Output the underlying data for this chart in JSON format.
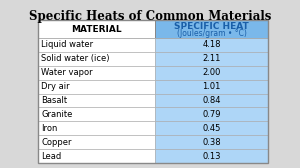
{
  "title": "Specific Heats of Common Materials",
  "col1_header": "MATERIAL",
  "col2_header": "SPECIFIC HEAT",
  "col2_subheader": "(Joules/gram • °C)",
  "materials": [
    "Liquid water",
    "Solid water (ice)",
    "Water vapor",
    "Dry air",
    "Basalt",
    "Granite",
    "Iron",
    "Copper",
    "Lead"
  ],
  "values": [
    "4.18",
    "2.11",
    "2.00",
    "1.01",
    "0.84",
    "0.79",
    "0.45",
    "0.38",
    "0.13"
  ],
  "header_bg_color": "#7ab8ea",
  "header_text_color": "#1a5fa8",
  "value_bg_color": "#aed6f7",
  "row_border_color": "#aaaaaa",
  "table_border_color": "#888888",
  "title_fontsize": 8.5,
  "header_fontsize": 6.5,
  "subheader_fontsize": 5.5,
  "body_fontsize": 6.0,
  "fig_bg_color": "#d8d8d8"
}
